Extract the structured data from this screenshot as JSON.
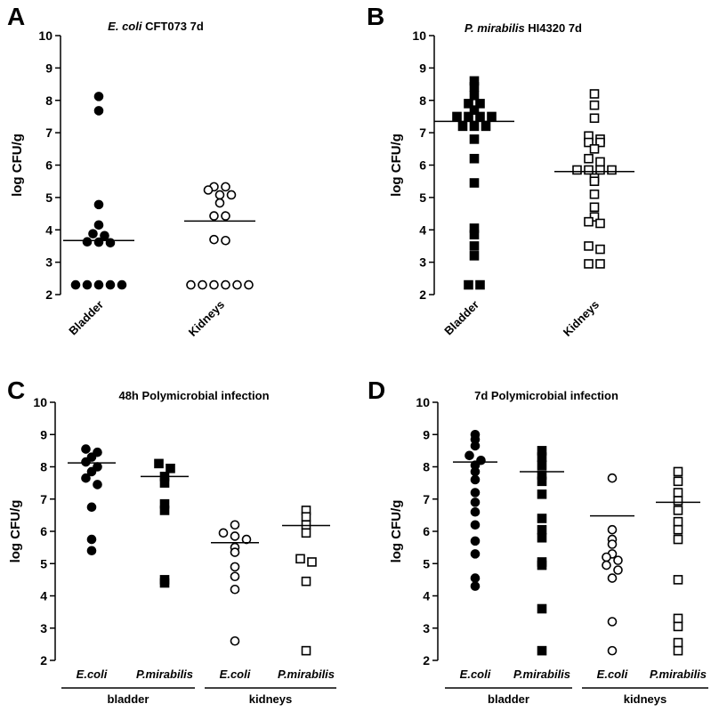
{
  "chart_data": [
    {
      "type": "scatter",
      "panel_letter": "A",
      "title": [
        {
          "text": "E. coli",
          "italic": true
        },
        {
          "text": " CFT073 7d",
          "italic": false
        }
      ],
      "ylabel": "log CFU/g",
      "ylim": [
        2,
        10
      ],
      "yticks": [
        2,
        3,
        4,
        5,
        6,
        7,
        8,
        9,
        10
      ],
      "groups": [
        {
          "label": "Bladder",
          "marker": "circle-filled",
          "median": 3.67,
          "values": [
            8.12,
            7.68,
            4.78,
            4.15,
            3.88,
            3.82,
            3.63,
            3.62,
            3.6,
            2.3,
            2.3,
            2.3,
            2.3,
            2.3
          ]
        },
        {
          "label": "Kidneys",
          "marker": "circle-open",
          "median": 4.27,
          "values": [
            5.33,
            5.23,
            5.33,
            5.08,
            5.08,
            4.83,
            4.43,
            4.43,
            3.7,
            3.67,
            2.3,
            2.3,
            2.3,
            2.3,
            2.3,
            2.3
          ]
        }
      ],
      "group_label_style": "rotated"
    },
    {
      "type": "scatter",
      "panel_letter": "B",
      "title": [
        {
          "text": "P. mirabilis",
          "italic": true
        },
        {
          "text": " HI4320 7d",
          "italic": false
        }
      ],
      "ylabel": "log CFU/g",
      "ylim": [
        2,
        10
      ],
      "yticks": [
        2,
        3,
        4,
        5,
        6,
        7,
        8,
        9,
        10
      ],
      "groups": [
        {
          "label": "Bladder",
          "marker": "square-filled",
          "median": 7.35,
          "values": [
            8.6,
            8.42,
            8.15,
            7.9,
            7.9,
            7.7,
            7.5,
            7.5,
            7.5,
            7.5,
            7.2,
            7.2,
            7.2,
            6.8,
            6.2,
            5.45,
            4.05,
            3.85,
            3.5,
            3.2,
            2.3,
            2.3
          ]
        },
        {
          "label": "Kidneys",
          "marker": "square-open",
          "median": 5.8,
          "values": [
            8.2,
            7.85,
            7.45,
            6.9,
            6.8,
            6.7,
            6.7,
            6.5,
            6.2,
            6.1,
            5.85,
            5.85,
            5.85,
            5.85,
            5.6,
            5.5,
            5.1,
            4.7,
            4.4,
            4.25,
            4.2,
            3.5,
            3.4,
            2.95,
            2.95
          ]
        }
      ],
      "group_label_style": "rotated"
    },
    {
      "type": "scatter",
      "panel_letter": "C",
      "title": [
        {
          "text": "48h Polymicrobial infection",
          "italic": false
        }
      ],
      "ylabel": "log CFU/g",
      "ylim": [
        2,
        10
      ],
      "yticks": [
        2,
        3,
        4,
        5,
        6,
        7,
        8,
        9,
        10
      ],
      "groups": [
        {
          "label": "E.coli",
          "marker": "circle-filled",
          "median": 8.12,
          "values": [
            8.55,
            8.45,
            8.3,
            8.15,
            8.0,
            7.85,
            7.65,
            7.45,
            6.75,
            5.75,
            5.4
          ]
        },
        {
          "label": "P.mirabilis",
          "marker": "square-filled",
          "median": 7.7,
          "values": [
            8.1,
            7.95,
            7.7,
            7.5,
            6.85,
            6.65,
            4.5,
            4.4
          ]
        },
        {
          "label": "E.coli",
          "marker": "circle-open",
          "median": 5.65,
          "values": [
            6.2,
            5.95,
            5.85,
            5.75,
            5.5,
            5.35,
            4.9,
            4.6,
            4.2,
            2.6
          ]
        },
        {
          "label": "P.mirabilis",
          "marker": "square-open",
          "median": 6.18,
          "values": [
            6.65,
            6.45,
            6.2,
            5.95,
            5.15,
            5.05,
            4.45,
            2.3
          ]
        }
      ],
      "group_label_style": "italic",
      "categories": [
        {
          "label": "bladder",
          "groups": [
            0,
            1
          ]
        },
        {
          "label": "kidneys",
          "groups": [
            2,
            3
          ]
        }
      ]
    },
    {
      "type": "scatter",
      "panel_letter": "D",
      "title": [
        {
          "text": "7d Polymicrobial infection",
          "italic": false
        }
      ],
      "ylabel": "log CFU/g",
      "ylim": [
        2,
        10
      ],
      "yticks": [
        2,
        3,
        4,
        5,
        6,
        7,
        8,
        9,
        10
      ],
      "groups": [
        {
          "label": "E.coli",
          "marker": "circle-filled",
          "median": 8.15,
          "values": [
            9.0,
            8.85,
            8.65,
            8.35,
            8.2,
            8.05,
            7.85,
            7.6,
            7.2,
            6.9,
            6.6,
            6.2,
            5.7,
            5.3,
            4.55,
            4.3
          ]
        },
        {
          "label": "P.mirabilis",
          "marker": "square-filled",
          "median": 7.85,
          "values": [
            8.5,
            8.3,
            8.05,
            7.75,
            7.55,
            7.15,
            6.4,
            6.05,
            5.8,
            5.05,
            4.95,
            3.6,
            2.3
          ]
        },
        {
          "label": "E.coli",
          "marker": "circle-open",
          "median": 6.48,
          "values": [
            7.65,
            6.05,
            5.75,
            5.6,
            5.3,
            5.2,
            5.1,
            4.95,
            4.8,
            4.55,
            3.2,
            2.3
          ]
        },
        {
          "label": "P.mirabilis",
          "marker": "square-open",
          "median": 6.9,
          "values": [
            7.85,
            7.55,
            7.2,
            6.95,
            6.65,
            6.3,
            6.05,
            5.75,
            4.5,
            3.3,
            3.05,
            2.55,
            2.3
          ]
        }
      ],
      "group_label_style": "italic",
      "categories": [
        {
          "label": "bladder",
          "groups": [
            0,
            1
          ]
        },
        {
          "label": "kidneys",
          "groups": [
            2,
            3
          ]
        }
      ]
    }
  ]
}
